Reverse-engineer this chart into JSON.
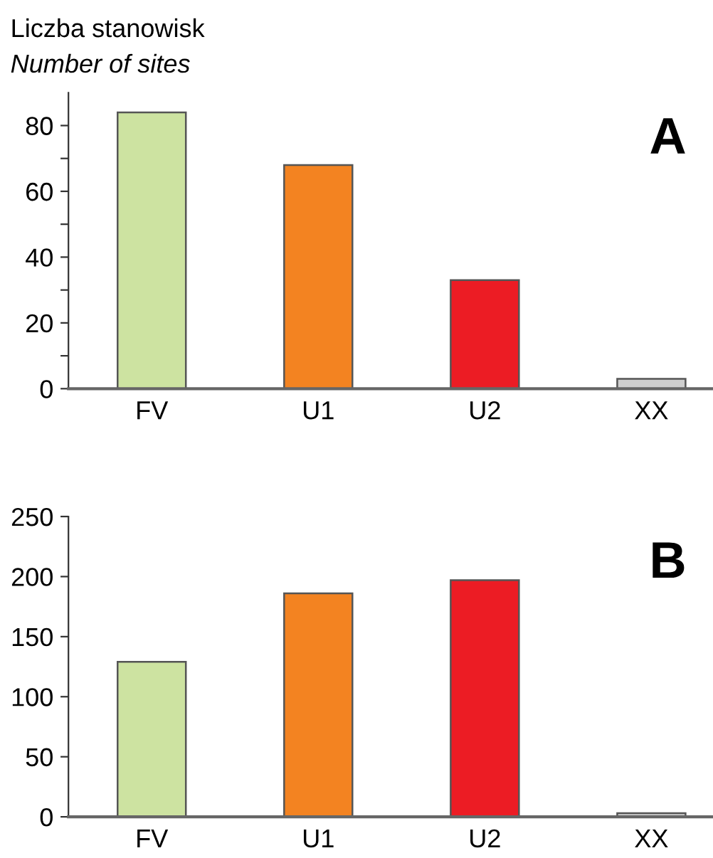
{
  "chart_data": [
    {
      "type": "bar",
      "ylabel": "Liczba stanowisk\nNumber of sites",
      "categories": [
        "FV",
        "U1",
        "U2",
        "XX"
      ],
      "values": [
        84,
        68,
        33,
        3
      ],
      "colors": [
        "#cde3a1",
        "#f38321",
        "#ec1c24",
        "#cfcfcf"
      ],
      "ylim": [
        0,
        90
      ],
      "yticks": [
        0,
        {
          "value": 10,
          "label": null
        },
        20,
        {
          "value": 30,
          "label": null
        },
        40,
        {
          "value": 50,
          "label": null
        },
        60,
        {
          "value": 70,
          "label": null
        },
        80
      ],
      "annotations": [
        "A"
      ]
    },
    {
      "type": "bar",
      "categories": [
        "FV",
        "U1",
        "U2",
        "XX"
      ],
      "values": [
        129,
        186,
        197,
        3
      ],
      "colors": [
        "#cde3a1",
        "#f38321",
        "#ec1c24",
        "#cfcfcf"
      ],
      "ylim": [
        0,
        250
      ],
      "yticks": [
        0,
        50,
        100,
        150,
        200,
        250
      ],
      "annotations": [
        "B"
      ]
    }
  ]
}
